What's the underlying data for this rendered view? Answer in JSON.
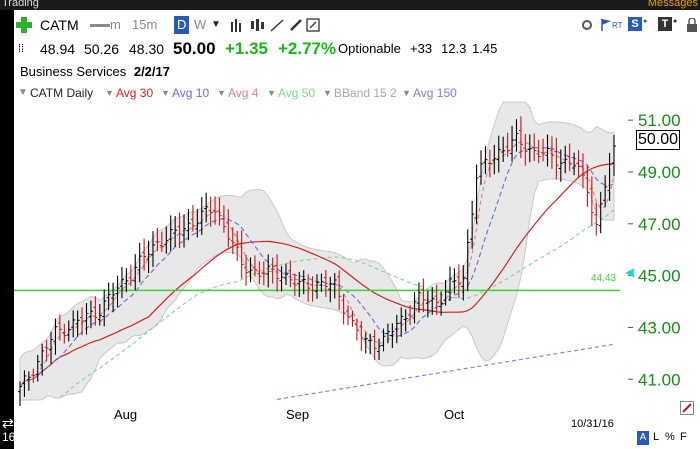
{
  "window": {
    "title": "Trading",
    "messages": "Messages"
  },
  "toolbar": {
    "symbol": "CATM",
    "intervals": [
      {
        "label": "m",
        "selected": false
      },
      {
        "label": "15m",
        "selected": false
      },
      {
        "label": "D",
        "selected": true
      },
      {
        "label": "W",
        "selected": false
      }
    ],
    "right_badges": {
      "rt": "RT",
      "s": "S",
      "t": "T"
    }
  },
  "quote": {
    "open": "48.94",
    "high": "50.26",
    "low": "48.30",
    "last": "50.00",
    "change": "+1.35",
    "change_pct": "+2.77%",
    "optionable": "Optionable",
    "rating": "+33",
    "v1": "12.3",
    "v2": "1.45"
  },
  "sector": {
    "name": "Business Services",
    "date": "2/2/17"
  },
  "legend": {
    "symbol_label": "CATM Daily",
    "items": [
      {
        "label": "Avg 30",
        "color": "#d42020"
      },
      {
        "label": "Avg 10",
        "color": "#6b6bd8"
      },
      {
        "label": "Avg 4",
        "color": "#e08080"
      },
      {
        "label": "Avg 50",
        "color": "#7fd87f"
      },
      {
        "label": "BBand 15 2",
        "color": "#a8a8a8"
      },
      {
        "label": "Avg 150",
        "color": "#7f7fd8"
      }
    ]
  },
  "axis": {
    "price_labels": [
      "51.00",
      "49.00",
      "47.00",
      "45.00",
      "43.00",
      "41.00"
    ],
    "current_price": "50.00",
    "line_label": "44.43",
    "month_labels": [
      "Aug",
      "Sep",
      "Oct"
    ],
    "date_label": "10/31/16",
    "left_label": "16",
    "scale_buttons": [
      "A",
      "L",
      "%",
      "F"
    ]
  },
  "colors": {
    "up_bar": "#000000",
    "down_bar": "#c01818",
    "horizontal_line": "#3ad43a",
    "bband_fill": "#e8e8e8",
    "price_label": "#1a8a1a",
    "change_positive": "#18b418"
  },
  "chart_data": {
    "type": "ohlc",
    "horizontal_line": 44.43,
    "ylim": [
      40.2,
      51.7
    ],
    "y_ticks": [
      41,
      43,
      45,
      47,
      49,
      51
    ],
    "x_ticks": [
      "Aug",
      "Sep",
      "Oct"
    ],
    "last_close": 50.0
  }
}
